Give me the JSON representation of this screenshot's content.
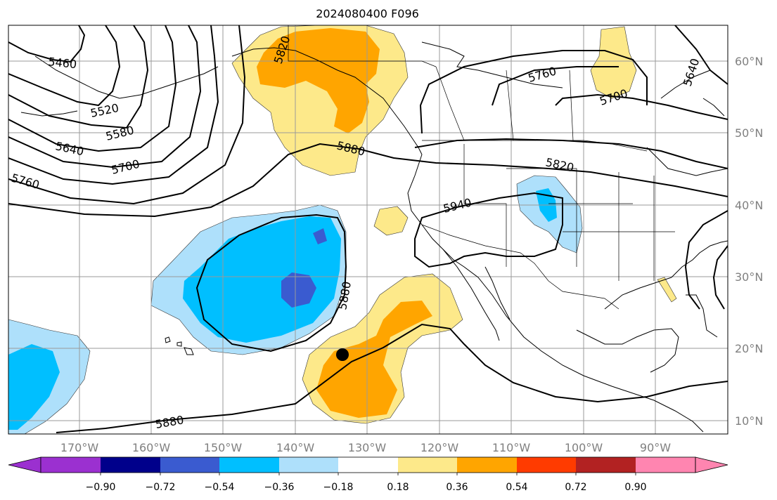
{
  "title": "2024080400 F096",
  "map": {
    "lon_ticks": [
      {
        "value": -170,
        "label": "170°W"
      },
      {
        "value": -160,
        "label": "160°W"
      },
      {
        "value": -150,
        "label": "150°W"
      },
      {
        "value": -140,
        "label": "140°W"
      },
      {
        "value": -130,
        "label": "130°W"
      },
      {
        "value": -120,
        "label": "120°W"
      },
      {
        "value": -110,
        "label": "110°W"
      },
      {
        "value": -100,
        "label": "100°W"
      },
      {
        "value": -90,
        "label": "90°W"
      }
    ],
    "lat_ticks": [
      {
        "value": 60,
        "label": "60°N"
      },
      {
        "value": 50,
        "label": "50°N"
      },
      {
        "value": 40,
        "label": "40°N"
      },
      {
        "value": 30,
        "label": "30°N"
      },
      {
        "value": 20,
        "label": "20°N"
      },
      {
        "value": 10,
        "label": "10°N"
      }
    ],
    "contour_labels": [
      "5460",
      "5520",
      "5580",
      "5640",
      "5700",
      "5760",
      "5820",
      "5880",
      "5940",
      "5760",
      "5700",
      "5640",
      "5820",
      "5880",
      "5880"
    ],
    "colorbar": {
      "labels": [
        "−0.90",
        "−0.72",
        "−0.54",
        "−0.36",
        "−0.18",
        "0.18",
        "0.36",
        "0.54",
        "0.72",
        "0.90"
      ],
      "colors": [
        "#9b30d0",
        "#00008b",
        "#3a5bd0",
        "#00bfff",
        "#aee0fb",
        "#ffffff",
        "#fde98a",
        "#ffa500",
        "#ff3b00",
        "#b22222",
        "#ff85b0"
      ]
    }
  }
}
